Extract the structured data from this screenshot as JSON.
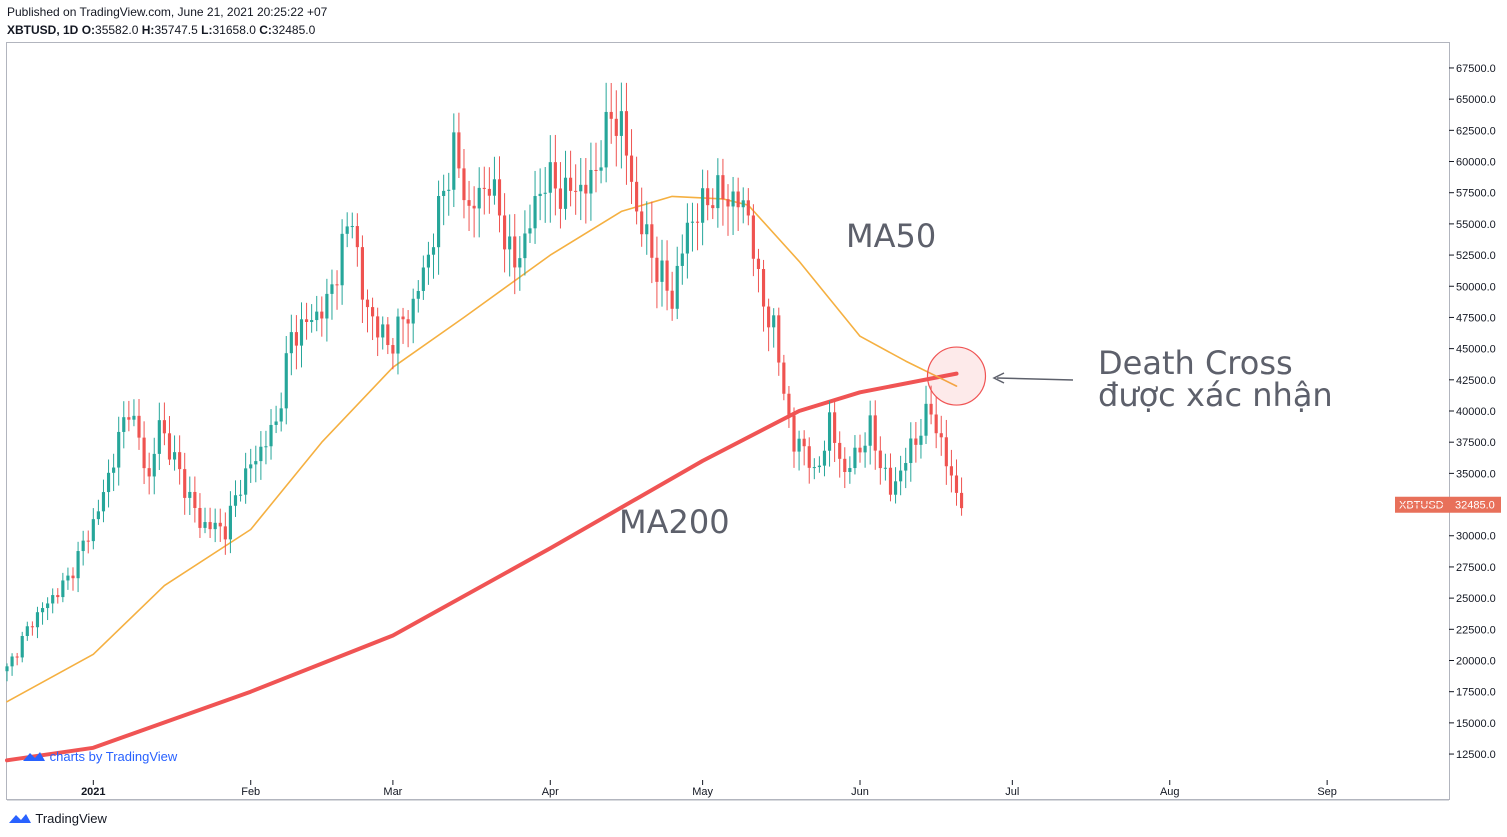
{
  "header": {
    "published": "Published on TradingView.com, June 21, 2021 20:25:22 +07",
    "symbol": "XBTUSD, 1D",
    "o_label": "O:",
    "o_value": "35582.0",
    "h_label": "H:",
    "h_value": "35747.5",
    "l_label": "L:",
    "l_value": "31658.0",
    "c_label": "C:",
    "c_value": "32485.0"
  },
  "watermark": "charts by TradingView",
  "footer_logo": "TradingView",
  "price_tag": {
    "symbol": "XBTUSD",
    "value": "32485.0"
  },
  "colors": {
    "up": "#26a69a",
    "down": "#ef5350",
    "ma50": "#f5b041",
    "ma200": "#f05454",
    "accent": "#2962ff",
    "tag": "#e8705a"
  },
  "icons": {
    "logo": "tradingview-cloud-icon",
    "watermark": "tradingview-cloud-icon"
  },
  "annotations": {
    "ma50": "MA50",
    "ma200": "MA200",
    "death_cross_line1": "Death Cross",
    "death_cross_line2": "được xác nhận"
  },
  "chart_data": {
    "type": "candlestick",
    "symbol": "XBTUSD",
    "interval": "1D",
    "x_start": "2020-12-15",
    "x_end": "2021-09-25",
    "ylim": [
      10500,
      69500
    ],
    "yticks": [
      12500,
      15000,
      17500,
      20000,
      22500,
      25000,
      27500,
      30000,
      32500,
      35000,
      37500,
      40000,
      42500,
      45000,
      47500,
      50000,
      52500,
      55000,
      57500,
      60000,
      62500,
      65000,
      67500
    ],
    "ytick_labels": [
      "12500.0",
      "15000.0",
      "17500.0",
      "20000.0",
      "22500.0",
      "25000.0",
      "27500.0",
      "30000.0",
      "32500.0",
      "35000.0",
      "37500.0",
      "40000.0",
      "42500.0",
      "45000.0",
      "47500.0",
      "50000.0",
      "52500.0",
      "55000.0",
      "57500.0",
      "60000.0",
      "62500.0",
      "65000.0",
      "67500.0"
    ],
    "xticks": [
      {
        "date": "2021-01-01",
        "label": "2021"
      },
      {
        "date": "2021-02-01",
        "label": "Feb"
      },
      {
        "date": "2021-03-01",
        "label": "Mar"
      },
      {
        "date": "2021-04-01",
        "label": "Apr"
      },
      {
        "date": "2021-05-01",
        "label": "May"
      },
      {
        "date": "2021-06-01",
        "label": "Jun"
      },
      {
        "date": "2021-07-01",
        "label": "Jul"
      },
      {
        "date": "2021-08-01",
        "label": "Aug"
      },
      {
        "date": "2021-09-01",
        "label": "Sep"
      }
    ],
    "close_anchors": [
      [
        "2020-12-15",
        19300
      ],
      [
        "2020-12-20",
        23200
      ],
      [
        "2020-12-27",
        26500
      ],
      [
        "2021-01-02",
        32000
      ],
      [
        "2021-01-08",
        40500
      ],
      [
        "2021-01-12",
        34500
      ],
      [
        "2021-01-14",
        39000
      ],
      [
        "2021-01-22",
        31000
      ],
      [
        "2021-01-27",
        30500
      ],
      [
        "2021-01-30",
        34200
      ],
      [
        "2021-02-06",
        39000
      ],
      [
        "2021-02-09",
        46000
      ],
      [
        "2021-02-16",
        48500
      ],
      [
        "2021-02-21",
        56000
      ],
      [
        "2021-02-23",
        49000
      ],
      [
        "2021-02-28",
        45200
      ],
      [
        "2021-03-05",
        48500
      ],
      [
        "2021-03-08",
        52500
      ],
      [
        "2021-03-13",
        61000
      ],
      [
        "2021-03-16",
        56000
      ],
      [
        "2021-03-20",
        58500
      ],
      [
        "2021-03-25",
        51500
      ],
      [
        "2021-03-31",
        58800
      ],
      [
        "2021-04-03",
        57500
      ],
      [
        "2021-04-09",
        58200
      ],
      [
        "2021-04-13",
        63600
      ],
      [
        "2021-04-15",
        63000
      ],
      [
        "2021-04-18",
        56000
      ],
      [
        "2021-04-22",
        51500
      ],
      [
        "2021-04-25",
        49000
      ],
      [
        "2021-04-28",
        54800
      ],
      [
        "2021-05-03",
        57500
      ],
      [
        "2021-05-07",
        57000
      ],
      [
        "2021-05-10",
        56000
      ],
      [
        "2021-05-12",
        50000
      ],
      [
        "2021-05-15",
        46500
      ],
      [
        "2021-05-19",
        37000
      ],
      [
        "2021-05-21",
        37500
      ],
      [
        "2021-05-23",
        34500
      ],
      [
        "2021-05-26",
        39000
      ],
      [
        "2021-05-29",
        35000
      ],
      [
        "2021-06-03",
        38500
      ],
      [
        "2021-06-07",
        33500
      ],
      [
        "2021-06-11",
        37000
      ],
      [
        "2021-06-15",
        40200
      ],
      [
        "2021-06-18",
        35800
      ],
      [
        "2021-06-21",
        32485
      ]
    ],
    "series": [
      {
        "name": "MA50",
        "type": "line",
        "points": [
          [
            "2020-12-15",
            16700
          ],
          [
            "2021-01-01",
            20500
          ],
          [
            "2021-01-15",
            26000
          ],
          [
            "2021-02-01",
            30500
          ],
          [
            "2021-02-15",
            37500
          ],
          [
            "2021-03-01",
            43500
          ],
          [
            "2021-03-15",
            47500
          ],
          [
            "2021-04-01",
            52500
          ],
          [
            "2021-04-15",
            56000
          ],
          [
            "2021-04-25",
            57200
          ],
          [
            "2021-05-05",
            57000
          ],
          [
            "2021-05-10",
            56500
          ],
          [
            "2021-05-20",
            52000
          ],
          [
            "2021-06-01",
            46000
          ],
          [
            "2021-06-10",
            44000
          ],
          [
            "2021-06-20",
            42000
          ]
        ]
      },
      {
        "name": "MA200",
        "type": "line",
        "points": [
          [
            "2020-12-15",
            12000
          ],
          [
            "2021-01-01",
            13000
          ],
          [
            "2021-02-01",
            17500
          ],
          [
            "2021-03-01",
            22000
          ],
          [
            "2021-04-01",
            29000
          ],
          [
            "2021-05-01",
            36000
          ],
          [
            "2021-05-20",
            40000
          ],
          [
            "2021-06-01",
            41500
          ],
          [
            "2021-06-20",
            43000
          ]
        ]
      }
    ],
    "last_price": 32485.0,
    "death_cross_date": "2021-06-20",
    "death_cross_price": 42800
  }
}
